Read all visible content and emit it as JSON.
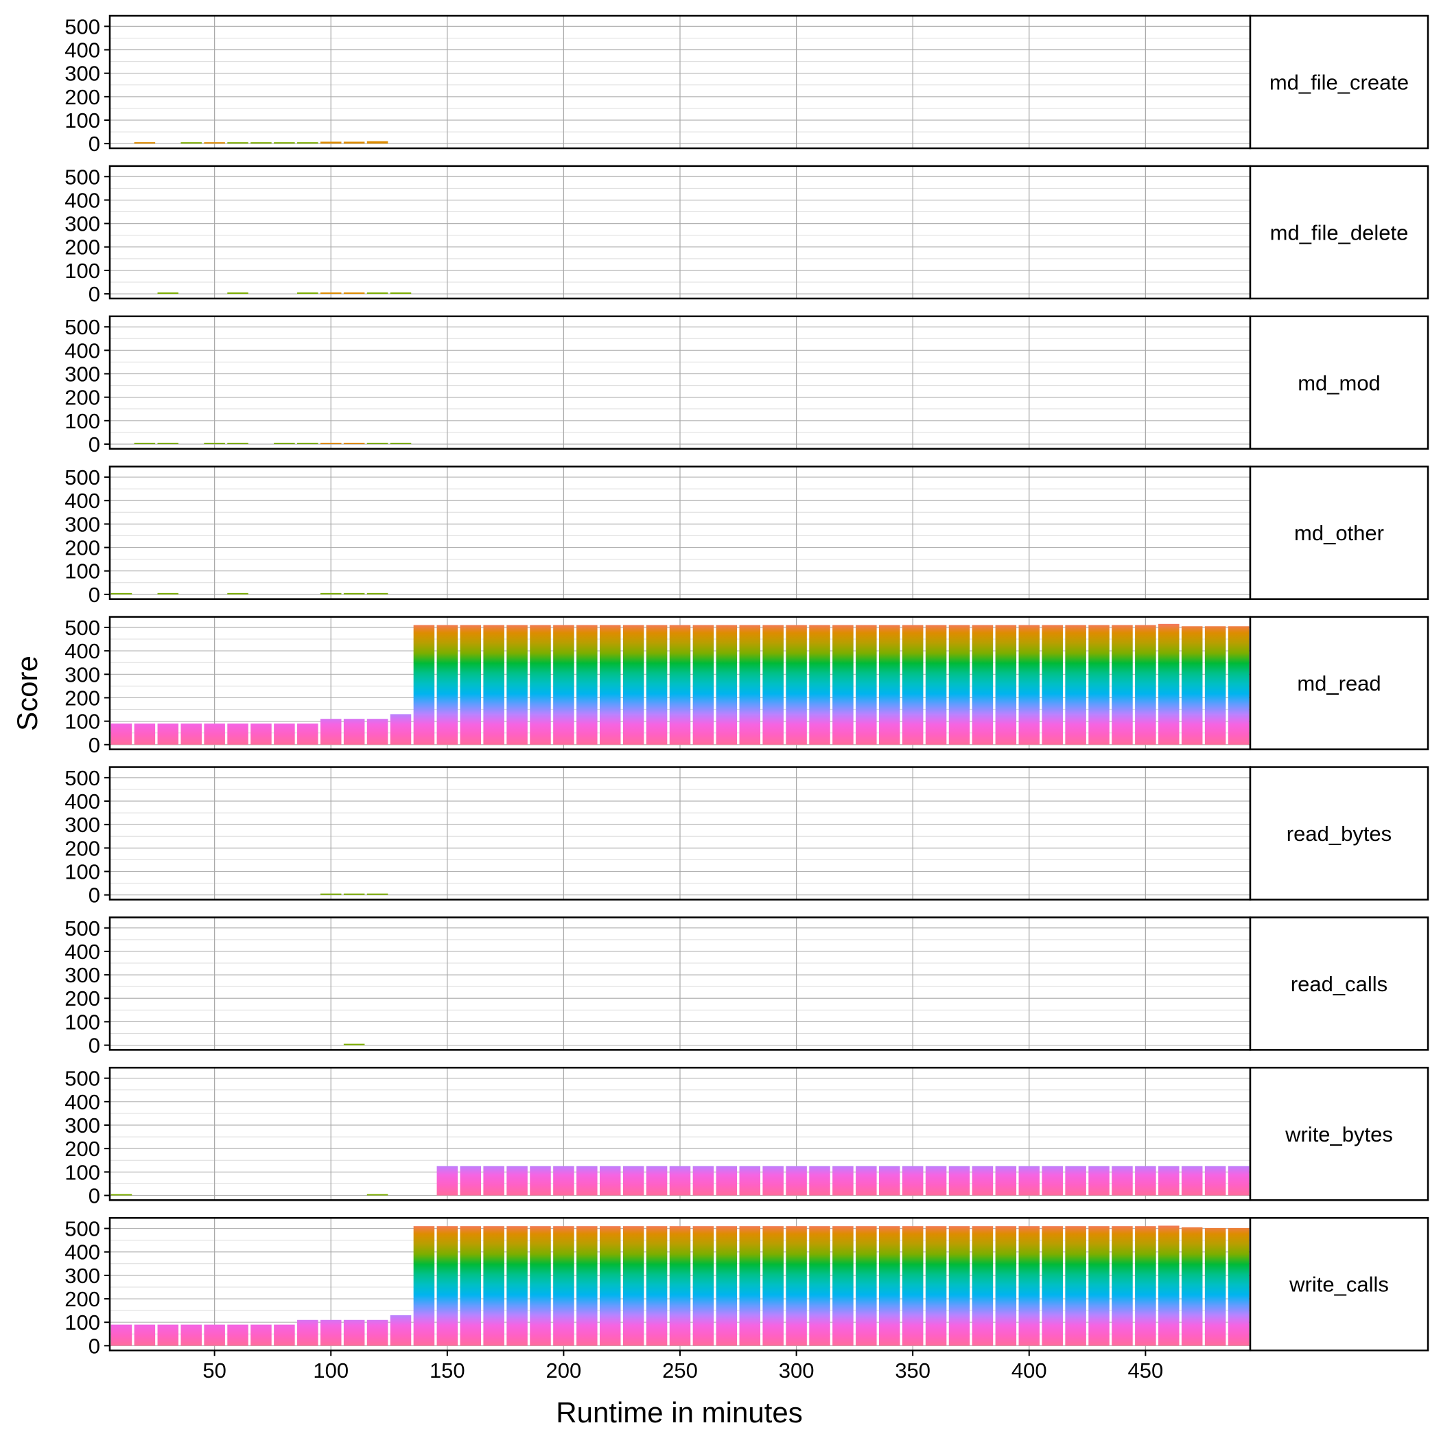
{
  "chart_data": {
    "type": "bar",
    "stacked": true,
    "faceted": true,
    "xlabel": "Runtime in minutes",
    "ylabel": "Score",
    "xticks": [
      50,
      100,
      150,
      200,
      250,
      300,
      350,
      400,
      450
    ],
    "yticks": [
      0,
      100,
      200,
      300,
      400,
      500
    ],
    "xlim": [
      5,
      495
    ],
    "ylim": [
      -20,
      545
    ],
    "grid": true,
    "fill_gradient_colors": [
      "#ff6d9c",
      "#ff61c3",
      "#f564e3",
      "#b983ff",
      "#619cff",
      "#00b4ef",
      "#00bfc4",
      "#00c08b",
      "#00ba38",
      "#7cae00",
      "#b79f00",
      "#de8c00",
      "#f8766d"
    ],
    "x": [
      10,
      20,
      30,
      40,
      50,
      60,
      70,
      80,
      90,
      100,
      110,
      120,
      130,
      140,
      150,
      160,
      170,
      180,
      190,
      200,
      210,
      220,
      230,
      240,
      250,
      260,
      270,
      280,
      290,
      300,
      310,
      320,
      330,
      340,
      350,
      360,
      370,
      380,
      390,
      400,
      410,
      420,
      430,
      440,
      450,
      460,
      470,
      480,
      490
    ],
    "panels": [
      {
        "name": "md_file_create",
        "values": [
          0,
          6,
          0,
          3,
          5,
          3,
          3,
          3,
          3,
          8,
          8,
          10,
          0,
          0,
          0,
          0,
          0,
          0,
          0,
          0,
          0,
          0,
          0,
          0,
          0,
          0,
          0,
          0,
          0,
          0,
          0,
          0,
          0,
          0,
          0,
          0,
          0,
          0,
          0,
          0,
          0,
          0,
          0,
          0,
          0,
          0,
          0,
          0,
          0
        ]
      },
      {
        "name": "md_file_delete",
        "values": [
          0,
          0,
          2,
          0,
          0,
          2,
          0,
          0,
          2,
          5,
          5,
          2,
          2,
          0,
          0,
          0,
          0,
          0,
          0,
          0,
          0,
          0,
          0,
          0,
          0,
          0,
          0,
          0,
          0,
          0,
          0,
          0,
          0,
          0,
          0,
          0,
          0,
          0,
          0,
          0,
          0,
          0,
          0,
          0,
          0,
          0,
          0,
          0,
          0
        ]
      },
      {
        "name": "md_mod",
        "values": [
          0,
          2,
          2,
          0,
          1,
          3,
          0,
          1,
          3,
          5,
          5,
          2,
          2,
          0,
          0,
          0,
          0,
          0,
          0,
          0,
          0,
          0,
          0,
          0,
          0,
          0,
          0,
          0,
          0,
          0,
          0,
          0,
          0,
          0,
          0,
          0,
          0,
          0,
          0,
          0,
          0,
          0,
          0,
          0,
          0,
          0,
          0,
          0,
          0
        ]
      },
      {
        "name": "md_other",
        "values": [
          1,
          0,
          3,
          0,
          0,
          3,
          0,
          0,
          0,
          1,
          2,
          2,
          0,
          0,
          0,
          0,
          0,
          0,
          0,
          0,
          0,
          0,
          0,
          0,
          0,
          0,
          0,
          0,
          0,
          0,
          0,
          0,
          0,
          0,
          0,
          0,
          0,
          0,
          0,
          0,
          0,
          0,
          0,
          0,
          0,
          0,
          0,
          0,
          0
        ]
      },
      {
        "name": "md_read",
        "values": [
          90,
          90,
          90,
          90,
          90,
          90,
          90,
          90,
          90,
          110,
          110,
          110,
          130,
          510,
          510,
          510,
          510,
          510,
          510,
          510,
          510,
          510,
          510,
          510,
          510,
          510,
          510,
          510,
          510,
          510,
          510,
          510,
          510,
          510,
          510,
          510,
          510,
          510,
          510,
          510,
          510,
          510,
          510,
          510,
          510,
          515,
          505,
          505,
          505
        ]
      },
      {
        "name": "read_bytes",
        "values": [
          0,
          0,
          0,
          0,
          0,
          0,
          0,
          0,
          0,
          1,
          1,
          1,
          0,
          0,
          0,
          0,
          0,
          0,
          0,
          0,
          0,
          0,
          0,
          0,
          0,
          0,
          0,
          0,
          0,
          0,
          0,
          0,
          0,
          0,
          0,
          0,
          0,
          0,
          0,
          0,
          0,
          0,
          0,
          0,
          0,
          0,
          0,
          0,
          0
        ]
      },
      {
        "name": "read_calls",
        "values": [
          0,
          0,
          0,
          0,
          0,
          0,
          0,
          0,
          0,
          0,
          2,
          0,
          0,
          0,
          0,
          0,
          0,
          0,
          0,
          0,
          0,
          0,
          0,
          0,
          0,
          0,
          0,
          0,
          0,
          0,
          0,
          0,
          0,
          0,
          0,
          0,
          0,
          0,
          0,
          0,
          0,
          0,
          0,
          0,
          0,
          0,
          0,
          0,
          0
        ]
      },
      {
        "name": "write_bytes",
        "values": [
          3,
          0,
          0,
          0,
          0,
          0,
          0,
          0,
          0,
          0,
          0,
          4,
          0,
          0,
          125,
          125,
          125,
          125,
          125,
          125,
          125,
          125,
          125,
          125,
          125,
          125,
          125,
          125,
          125,
          125,
          125,
          125,
          125,
          125,
          125,
          125,
          125,
          125,
          125,
          125,
          125,
          125,
          125,
          125,
          125,
          125,
          125,
          125,
          125
        ]
      },
      {
        "name": "write_calls",
        "values": [
          90,
          90,
          90,
          90,
          90,
          90,
          90,
          90,
          110,
          110,
          110,
          110,
          130,
          510,
          510,
          510,
          510,
          510,
          510,
          510,
          510,
          510,
          510,
          510,
          510,
          510,
          510,
          510,
          510,
          510,
          510,
          510,
          510,
          510,
          510,
          510,
          510,
          510,
          510,
          510,
          510,
          510,
          510,
          510,
          510,
          512,
          505,
          502,
          502
        ]
      }
    ]
  }
}
